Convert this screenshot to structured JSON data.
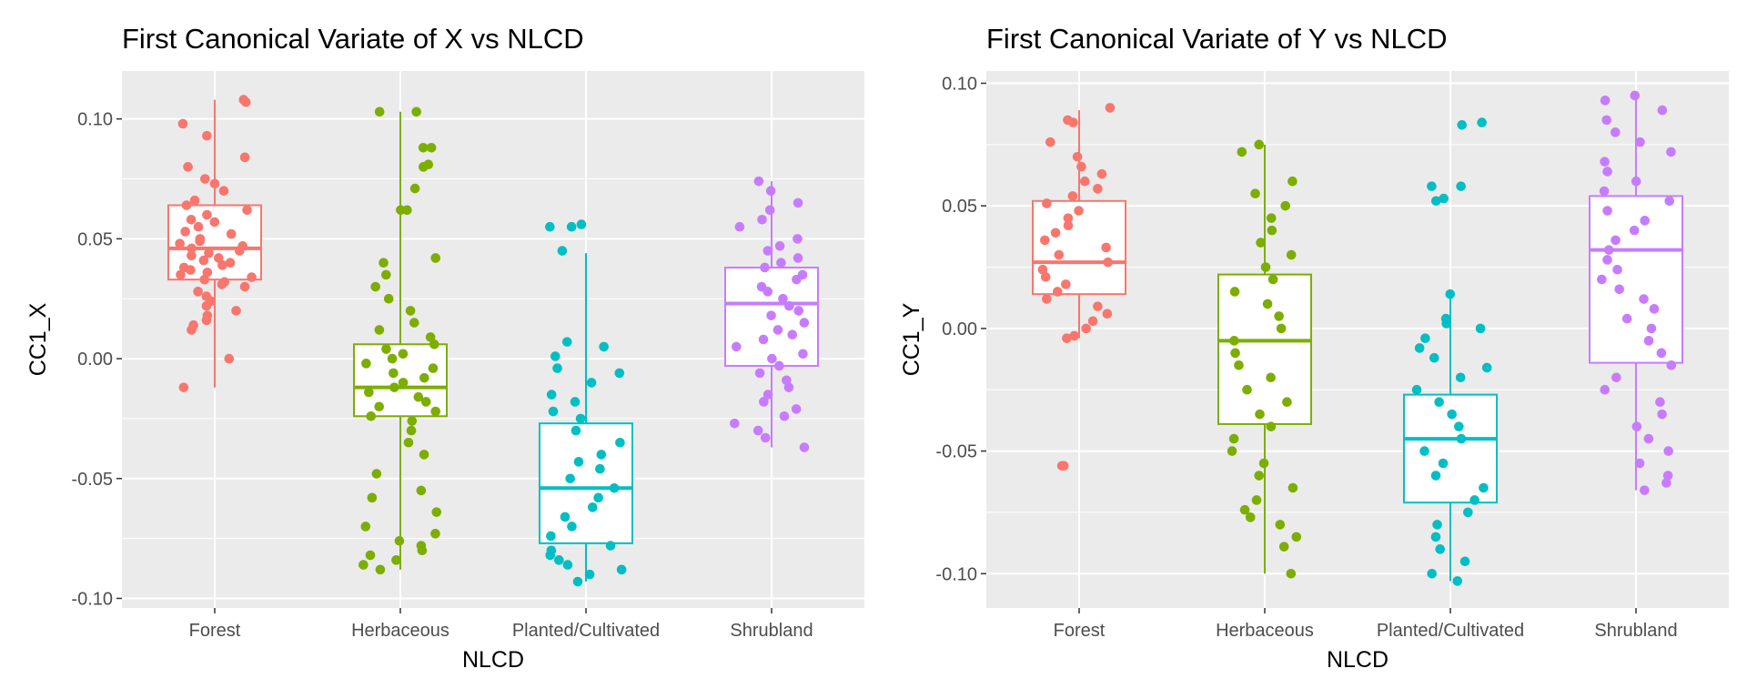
{
  "chart_data": [
    {
      "type": "box+jitter",
      "title": "First Canonical Variate of X vs NLCD",
      "xlabel": "NLCD",
      "ylabel": "CC1_X",
      "categories": [
        "Forest",
        "Herbaceous",
        "Planted/Cultivated",
        "Shrubland"
      ],
      "colors": [
        "#F8766D",
        "#7CAE00",
        "#00BFC4",
        "#C77CFF"
      ],
      "ylim": [
        -0.104,
        0.12
      ],
      "yticks": [
        0.1,
        0.05,
        0.0,
        -0.05,
        -0.1
      ],
      "ytick_labels": [
        "0.10",
        "0.05",
        "0.00",
        "-0.05",
        "-0.10"
      ],
      "grid": true,
      "legend": "none",
      "boxes": [
        {
          "category": "Forest",
          "min": -0.012,
          "q1": 0.033,
          "median": 0.046,
          "q3": 0.064,
          "max": 0.108
        },
        {
          "category": "Herbaceous",
          "min": -0.088,
          "q1": -0.024,
          "median": -0.012,
          "q3": 0.006,
          "max": 0.103
        },
        {
          "category": "Planted/Cultivated",
          "min": -0.093,
          "q1": -0.077,
          "median": -0.054,
          "q3": -0.027,
          "max": 0.044
        },
        {
          "category": "Shrubland",
          "min": -0.037,
          "q1": -0.003,
          "median": 0.023,
          "q3": 0.038,
          "max": 0.074
        }
      ],
      "points": [
        [
          0.108,
          0.107,
          0.098,
          0.093,
          0.084,
          0.08,
          0.075,
          0.073,
          0.07,
          0.066,
          0.064,
          0.062,
          0.06,
          0.058,
          0.057,
          0.055,
          0.053,
          0.052,
          0.05,
          0.049,
          0.048,
          0.047,
          0.046,
          0.045,
          0.044,
          0.043,
          0.042,
          0.041,
          0.04,
          0.039,
          0.038,
          0.037,
          0.036,
          0.035,
          0.034,
          0.033,
          0.032,
          0.031,
          0.03,
          0.028,
          0.026,
          0.024,
          0.022,
          0.02,
          0.018,
          0.016,
          0.014,
          0.012,
          0.0,
          -0.012
        ],
        [
          0.103,
          0.103,
          0.088,
          0.088,
          0.081,
          0.08,
          0.071,
          0.062,
          0.062,
          0.042,
          0.04,
          0.035,
          0.03,
          0.025,
          0.02,
          0.015,
          0.012,
          0.009,
          0.006,
          0.004,
          0.002,
          0.0,
          -0.002,
          -0.004,
          -0.006,
          -0.008,
          -0.01,
          -0.012,
          -0.014,
          -0.016,
          -0.018,
          -0.02,
          -0.022,
          -0.024,
          -0.026,
          -0.03,
          -0.035,
          -0.04,
          -0.048,
          -0.055,
          -0.058,
          -0.064,
          -0.07,
          -0.073,
          -0.076,
          -0.078,
          -0.08,
          -0.082,
          -0.084,
          -0.086,
          -0.088
        ],
        [
          0.056,
          0.055,
          0.055,
          0.045,
          0.007,
          0.005,
          0.001,
          -0.004,
          -0.006,
          -0.01,
          -0.015,
          -0.018,
          -0.022,
          -0.025,
          -0.03,
          -0.035,
          -0.04,
          -0.043,
          -0.046,
          -0.05,
          -0.054,
          -0.058,
          -0.062,
          -0.066,
          -0.07,
          -0.074,
          -0.078,
          -0.08,
          -0.082,
          -0.084,
          -0.086,
          -0.088,
          -0.09,
          -0.093
        ],
        [
          0.074,
          0.07,
          0.065,
          0.062,
          0.058,
          0.055,
          0.05,
          0.047,
          0.045,
          0.042,
          0.04,
          0.038,
          0.035,
          0.033,
          0.03,
          0.028,
          0.025,
          0.022,
          0.02,
          0.018,
          0.015,
          0.012,
          0.01,
          0.008,
          0.005,
          0.002,
          0.0,
          -0.003,
          -0.006,
          -0.009,
          -0.012,
          -0.015,
          -0.018,
          -0.021,
          -0.024,
          -0.027,
          -0.03,
          -0.033,
          -0.037
        ]
      ]
    },
    {
      "type": "box+jitter",
      "title": "First Canonical Variate of Y vs NLCD",
      "xlabel": "NLCD",
      "ylabel": "CC1_Y",
      "categories": [
        "Forest",
        "Herbaceous",
        "Planted/Cultivated",
        "Shrubland"
      ],
      "colors": [
        "#F8766D",
        "#7CAE00",
        "#00BFC4",
        "#C77CFF"
      ],
      "ylim": [
        -0.114,
        0.105
      ],
      "yticks": [
        0.1,
        0.05,
        0.0,
        -0.05,
        -0.1
      ],
      "ytick_labels": [
        "0.10",
        "0.05",
        "0.00",
        "-0.05",
        "-0.10"
      ],
      "grid": true,
      "legend": "none",
      "boxes": [
        {
          "category": "Forest",
          "min": -0.004,
          "q1": 0.014,
          "median": 0.027,
          "q3": 0.052,
          "max": 0.089
        },
        {
          "category": "Herbaceous",
          "min": -0.1,
          "q1": -0.039,
          "median": -0.005,
          "q3": 0.022,
          "max": 0.075
        },
        {
          "category": "Planted/Cultivated",
          "min": -0.103,
          "q1": -0.071,
          "median": -0.045,
          "q3": -0.027,
          "max": 0.014
        },
        {
          "category": "Shrubland",
          "min": -0.066,
          "q1": -0.014,
          "median": 0.032,
          "q3": 0.054,
          "max": 0.095
        }
      ],
      "points": [
        [
          0.09,
          0.085,
          0.084,
          0.076,
          0.07,
          0.066,
          0.063,
          0.06,
          0.057,
          0.054,
          0.051,
          0.048,
          0.045,
          0.042,
          0.039,
          0.036,
          0.033,
          0.03,
          0.027,
          0.024,
          0.021,
          0.018,
          0.015,
          0.012,
          0.009,
          0.006,
          0.003,
          0.0,
          -0.003,
          -0.004,
          -0.056,
          -0.056
        ],
        [
          0.075,
          0.072,
          0.06,
          0.055,
          0.05,
          0.045,
          0.04,
          0.035,
          0.03,
          0.025,
          0.02,
          0.015,
          0.01,
          0.005,
          0.0,
          -0.005,
          -0.01,
          -0.015,
          -0.02,
          -0.025,
          -0.03,
          -0.035,
          -0.04,
          -0.045,
          -0.05,
          -0.055,
          -0.06,
          -0.065,
          -0.07,
          -0.074,
          -0.077,
          -0.08,
          -0.085,
          -0.089,
          -0.1
        ],
        [
          0.084,
          0.083,
          0.058,
          0.058,
          0.053,
          0.052,
          0.014,
          0.004,
          0.002,
          0.0,
          -0.004,
          -0.008,
          -0.012,
          -0.016,
          -0.02,
          -0.025,
          -0.03,
          -0.035,
          -0.04,
          -0.045,
          -0.05,
          -0.055,
          -0.06,
          -0.065,
          -0.07,
          -0.075,
          -0.08,
          -0.085,
          -0.09,
          -0.095,
          -0.1,
          -0.103
        ],
        [
          0.095,
          0.093,
          0.089,
          0.085,
          0.08,
          0.076,
          0.072,
          0.068,
          0.064,
          0.06,
          0.056,
          0.052,
          0.048,
          0.044,
          0.04,
          0.036,
          0.032,
          0.028,
          0.024,
          0.02,
          0.016,
          0.012,
          0.008,
          0.004,
          0.0,
          -0.005,
          -0.01,
          -0.015,
          -0.02,
          -0.025,
          -0.03,
          -0.035,
          -0.04,
          -0.045,
          -0.05,
          -0.055,
          -0.06,
          -0.063,
          -0.066
        ]
      ]
    }
  ]
}
